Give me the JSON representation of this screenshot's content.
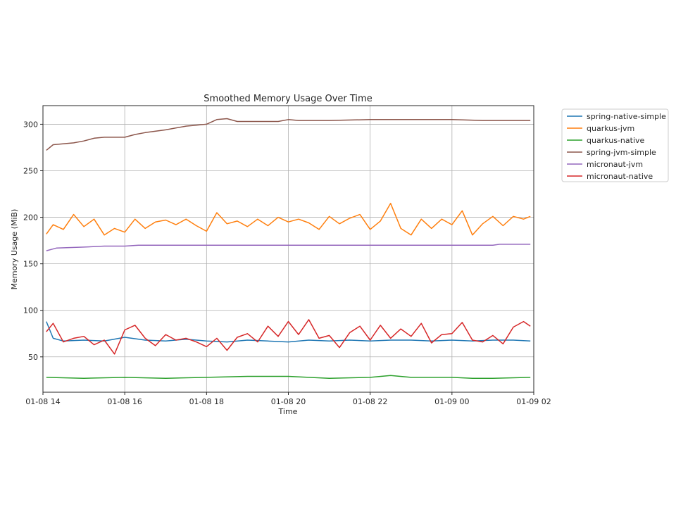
{
  "chart_data": {
    "type": "line",
    "title": "Smoothed Memory Usage Over Time",
    "xlabel": "Time",
    "ylabel": "Memory Usage (MiB)",
    "xlim": [
      "2024-01-08 14:00",
      "2024-01-09 02:00"
    ],
    "ylim": [
      12,
      320
    ],
    "x_ticks": [
      {
        "t": "2024-01-08 14:00",
        "label": "01-08 14"
      },
      {
        "t": "2024-01-08 16:00",
        "label": "01-08 16"
      },
      {
        "t": "2024-01-08 18:00",
        "label": "01-08 18"
      },
      {
        "t": "2024-01-08 20:00",
        "label": "01-08 20"
      },
      {
        "t": "2024-01-08 22:00",
        "label": "01-08 22"
      },
      {
        "t": "2024-01-09 00:00",
        "label": "01-09 00"
      },
      {
        "t": "2024-01-09 02:00",
        "label": "01-09 02"
      }
    ],
    "y_ticks": [
      50,
      100,
      150,
      200,
      250,
      300
    ],
    "grid": true,
    "legend_position": "outside-upper-right",
    "series": [
      {
        "name": "spring-native-simple",
        "color": "#1f77b4",
        "points": [
          [
            "2024-01-08 14:05",
            88
          ],
          [
            "2024-01-08 14:15",
            70
          ],
          [
            "2024-01-08 14:30",
            67
          ],
          [
            "2024-01-08 15:00",
            68
          ],
          [
            "2024-01-08 15:30",
            67
          ],
          [
            "2024-01-08 16:00",
            71
          ],
          [
            "2024-01-08 16:30",
            68
          ],
          [
            "2024-01-08 17:00",
            67
          ],
          [
            "2024-01-08 17:30",
            69
          ],
          [
            "2024-01-08 18:00",
            67
          ],
          [
            "2024-01-08 18:30",
            66
          ],
          [
            "2024-01-08 19:00",
            68
          ],
          [
            "2024-01-08 19:30",
            67
          ],
          [
            "2024-01-08 20:00",
            66
          ],
          [
            "2024-01-08 20:30",
            68
          ],
          [
            "2024-01-08 21:00",
            67
          ],
          [
            "2024-01-08 21:30",
            68
          ],
          [
            "2024-01-08 22:00",
            67
          ],
          [
            "2024-01-08 22:30",
            68
          ],
          [
            "2024-01-08 23:00",
            68
          ],
          [
            "2024-01-08 23:30",
            67
          ],
          [
            "2024-01-09 00:00",
            68
          ],
          [
            "2024-01-09 00:30",
            67
          ],
          [
            "2024-01-09 01:00",
            68
          ],
          [
            "2024-01-09 01:30",
            68
          ],
          [
            "2024-01-09 01:55",
            67
          ]
        ]
      },
      {
        "name": "quarkus-jvm",
        "color": "#ff7f0e",
        "points": [
          [
            "2024-01-08 14:05",
            182
          ],
          [
            "2024-01-08 14:15",
            192
          ],
          [
            "2024-01-08 14:30",
            187
          ],
          [
            "2024-01-08 14:45",
            203
          ],
          [
            "2024-01-08 15:00",
            190
          ],
          [
            "2024-01-08 15:15",
            198
          ],
          [
            "2024-01-08 15:30",
            181
          ],
          [
            "2024-01-08 15:45",
            188
          ],
          [
            "2024-01-08 16:00",
            184
          ],
          [
            "2024-01-08 16:15",
            198
          ],
          [
            "2024-01-08 16:30",
            188
          ],
          [
            "2024-01-08 16:45",
            195
          ],
          [
            "2024-01-08 17:00",
            197
          ],
          [
            "2024-01-08 17:15",
            192
          ],
          [
            "2024-01-08 17:30",
            198
          ],
          [
            "2024-01-08 17:45",
            191
          ],
          [
            "2024-01-08 18:00",
            185
          ],
          [
            "2024-01-08 18:15",
            205
          ],
          [
            "2024-01-08 18:30",
            193
          ],
          [
            "2024-01-08 18:45",
            196
          ],
          [
            "2024-01-08 19:00",
            190
          ],
          [
            "2024-01-08 19:15",
            198
          ],
          [
            "2024-01-08 19:30",
            191
          ],
          [
            "2024-01-08 19:45",
            200
          ],
          [
            "2024-01-08 20:00",
            195
          ],
          [
            "2024-01-08 20:15",
            198
          ],
          [
            "2024-01-08 20:30",
            194
          ],
          [
            "2024-01-08 20:45",
            187
          ],
          [
            "2024-01-08 21:00",
            201
          ],
          [
            "2024-01-08 21:15",
            193
          ],
          [
            "2024-01-08 21:30",
            199
          ],
          [
            "2024-01-08 21:45",
            203
          ],
          [
            "2024-01-08 22:00",
            187
          ],
          [
            "2024-01-08 22:15",
            196
          ],
          [
            "2024-01-08 22:30",
            215
          ],
          [
            "2024-01-08 22:45",
            188
          ],
          [
            "2024-01-08 23:00",
            181
          ],
          [
            "2024-01-08 23:15",
            198
          ],
          [
            "2024-01-08 23:30",
            188
          ],
          [
            "2024-01-08 23:45",
            198
          ],
          [
            "2024-01-09 00:00",
            192
          ],
          [
            "2024-01-09 00:15",
            207
          ],
          [
            "2024-01-09 00:30",
            181
          ],
          [
            "2024-01-09 00:45",
            193
          ],
          [
            "2024-01-09 01:00",
            201
          ],
          [
            "2024-01-09 01:15",
            191
          ],
          [
            "2024-01-09 01:30",
            201
          ],
          [
            "2024-01-09 01:45",
            198
          ],
          [
            "2024-01-09 01:55",
            201
          ]
        ]
      },
      {
        "name": "quarkus-native",
        "color": "#2ca02c",
        "points": [
          [
            "2024-01-08 14:05",
            28
          ],
          [
            "2024-01-08 15:00",
            27
          ],
          [
            "2024-01-08 16:00",
            28
          ],
          [
            "2024-01-08 17:00",
            27
          ],
          [
            "2024-01-08 18:00",
            28
          ],
          [
            "2024-01-08 19:00",
            29
          ],
          [
            "2024-01-08 20:00",
            29
          ],
          [
            "2024-01-08 21:00",
            27
          ],
          [
            "2024-01-08 22:00",
            28
          ],
          [
            "2024-01-08 22:30",
            30
          ],
          [
            "2024-01-08 23:00",
            28
          ],
          [
            "2024-01-09 00:00",
            28
          ],
          [
            "2024-01-09 00:30",
            27
          ],
          [
            "2024-01-09 01:00",
            27
          ],
          [
            "2024-01-09 01:55",
            28
          ]
        ]
      },
      {
        "name": "spring-jvm-simple",
        "color": "#8c564b",
        "points": [
          [
            "2024-01-08 14:05",
            272
          ],
          [
            "2024-01-08 14:15",
            278
          ],
          [
            "2024-01-08 14:45",
            280
          ],
          [
            "2024-01-08 15:00",
            282
          ],
          [
            "2024-01-08 15:15",
            285
          ],
          [
            "2024-01-08 15:30",
            286
          ],
          [
            "2024-01-08 16:00",
            286
          ],
          [
            "2024-01-08 16:15",
            289
          ],
          [
            "2024-01-08 16:30",
            291
          ],
          [
            "2024-01-08 17:00",
            294
          ],
          [
            "2024-01-08 17:30",
            298
          ],
          [
            "2024-01-08 18:00",
            300
          ],
          [
            "2024-01-08 18:15",
            305
          ],
          [
            "2024-01-08 18:30",
            306
          ],
          [
            "2024-01-08 18:45",
            303
          ],
          [
            "2024-01-08 19:30",
            303
          ],
          [
            "2024-01-08 19:45",
            303
          ],
          [
            "2024-01-08 20:00",
            305
          ],
          [
            "2024-01-08 20:15",
            304
          ],
          [
            "2024-01-08 21:00",
            304
          ],
          [
            "2024-01-08 22:00",
            305
          ],
          [
            "2024-01-09 00:00",
            305
          ],
          [
            "2024-01-09 00:45",
            304
          ],
          [
            "2024-01-09 01:55",
            304
          ]
        ]
      },
      {
        "name": "micronaut-jvm",
        "color": "#9467bd",
        "points": [
          [
            "2024-01-08 14:05",
            164
          ],
          [
            "2024-01-08 14:20",
            167
          ],
          [
            "2024-01-08 15:00",
            168
          ],
          [
            "2024-01-08 15:30",
            169
          ],
          [
            "2024-01-08 16:00",
            169
          ],
          [
            "2024-01-08 16:20",
            170
          ],
          [
            "2024-01-08 18:00",
            170
          ],
          [
            "2024-01-08 20:00",
            170
          ],
          [
            "2024-01-08 22:00",
            170
          ],
          [
            "2024-01-09 00:00",
            170
          ],
          [
            "2024-01-09 01:00",
            170
          ],
          [
            "2024-01-09 01:10",
            171
          ],
          [
            "2024-01-09 01:55",
            171
          ]
        ]
      },
      {
        "name": "micronaut-native",
        "color": "#d62728",
        "points": [
          [
            "2024-01-08 14:05",
            77
          ],
          [
            "2024-01-08 14:15",
            86
          ],
          [
            "2024-01-08 14:30",
            66
          ],
          [
            "2024-01-08 14:45",
            70
          ],
          [
            "2024-01-08 15:00",
            72
          ],
          [
            "2024-01-08 15:15",
            63
          ],
          [
            "2024-01-08 15:30",
            68
          ],
          [
            "2024-01-08 15:45",
            53
          ],
          [
            "2024-01-08 16:00",
            79
          ],
          [
            "2024-01-08 16:15",
            84
          ],
          [
            "2024-01-08 16:30",
            70
          ],
          [
            "2024-01-08 16:45",
            62
          ],
          [
            "2024-01-08 17:00",
            74
          ],
          [
            "2024-01-08 17:15",
            68
          ],
          [
            "2024-01-08 17:30",
            70
          ],
          [
            "2024-01-08 17:45",
            66
          ],
          [
            "2024-01-08 18:00",
            61
          ],
          [
            "2024-01-08 18:15",
            70
          ],
          [
            "2024-01-08 18:30",
            57
          ],
          [
            "2024-01-08 18:45",
            71
          ],
          [
            "2024-01-08 19:00",
            75
          ],
          [
            "2024-01-08 19:15",
            66
          ],
          [
            "2024-01-08 19:30",
            83
          ],
          [
            "2024-01-08 19:45",
            72
          ],
          [
            "2024-01-08 20:00",
            88
          ],
          [
            "2024-01-08 20:15",
            74
          ],
          [
            "2024-01-08 20:30",
            90
          ],
          [
            "2024-01-08 20:45",
            70
          ],
          [
            "2024-01-08 21:00",
            73
          ],
          [
            "2024-01-08 21:15",
            60
          ],
          [
            "2024-01-08 21:30",
            76
          ],
          [
            "2024-01-08 21:45",
            83
          ],
          [
            "2024-01-08 22:00",
            68
          ],
          [
            "2024-01-08 22:15",
            84
          ],
          [
            "2024-01-08 22:30",
            70
          ],
          [
            "2024-01-08 22:45",
            80
          ],
          [
            "2024-01-08 23:00",
            72
          ],
          [
            "2024-01-08 23:15",
            86
          ],
          [
            "2024-01-08 23:30",
            65
          ],
          [
            "2024-01-08 23:45",
            74
          ],
          [
            "2024-01-09 00:00",
            75
          ],
          [
            "2024-01-09 00:15",
            87
          ],
          [
            "2024-01-09 00:30",
            68
          ],
          [
            "2024-01-09 00:45",
            66
          ],
          [
            "2024-01-09 01:00",
            73
          ],
          [
            "2024-01-09 01:15",
            64
          ],
          [
            "2024-01-09 01:30",
            82
          ],
          [
            "2024-01-09 01:45",
            88
          ],
          [
            "2024-01-09 01:55",
            83
          ]
        ]
      }
    ]
  }
}
